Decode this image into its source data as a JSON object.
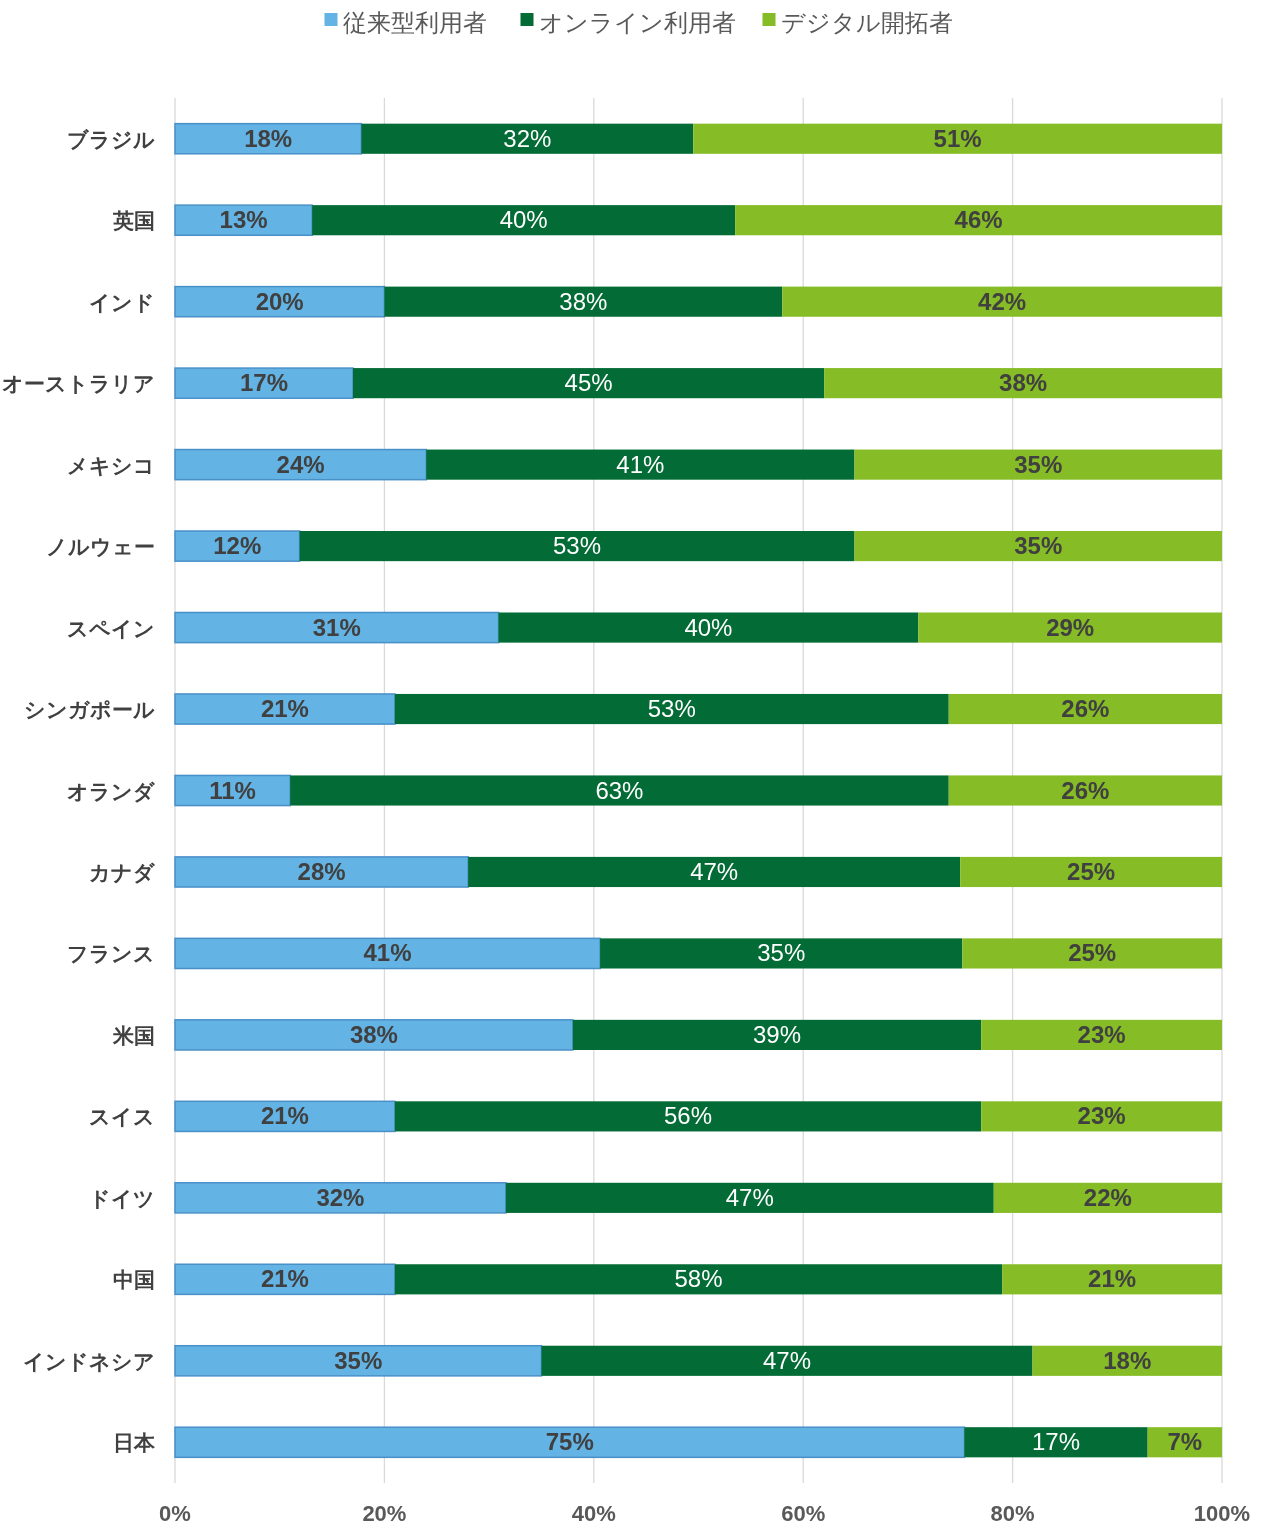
{
  "chart_data": {
    "type": "bar",
    "orientation": "horizontal",
    "stacked": true,
    "legend": "top",
    "grid": "x",
    "categories": [
      "ブラジル",
      "英国",
      "インド",
      "オーストラリア",
      "メキシコ",
      "ノルウェー",
      "スペイン",
      "シンガポール",
      "オランダ",
      "カナダ",
      "フランス",
      "米国",
      "スイス",
      "ドイツ",
      "中国",
      "インドネシア",
      "日本"
    ],
    "xlim": [
      0,
      100
    ],
    "xticks": [
      {
        "value": 0,
        "label": "0%"
      },
      {
        "value": 20,
        "label": "20%"
      },
      {
        "value": 40,
        "label": "40%"
      },
      {
        "value": 60,
        "label": "60%"
      },
      {
        "value": 80,
        "label": "80%"
      },
      {
        "value": 100,
        "label": "100%"
      }
    ],
    "series": [
      {
        "name": "従来型利用者",
        "color": "#63b3e4",
        "values": [
          17.8,
          13.1,
          20.0,
          17.0,
          24.0,
          11.9,
          30.9,
          21.0,
          11.0,
          28.0,
          40.6,
          38.0,
          21.0,
          31.6,
          21.0,
          35.0,
          75.4
        ],
        "value_labels": [
          "18%",
          "13%",
          "20%",
          "17%",
          "24%",
          "12%",
          "31%",
          "21%",
          "11%",
          "28%",
          "41%",
          "38%",
          "21%",
          "32%",
          "21%",
          "35%",
          "75%"
        ]
      },
      {
        "name": "オンライン利用者",
        "color": "#036b35",
        "values": [
          31.7,
          40.4,
          38.0,
          45.0,
          40.9,
          53.0,
          40.1,
          52.9,
          62.9,
          47.0,
          34.6,
          39.0,
          56.0,
          46.6,
          58.0,
          46.9,
          17.5
        ],
        "value_labels": [
          "32%",
          "40%",
          "38%",
          "45%",
          "41%",
          "53%",
          "40%",
          "53%",
          "63%",
          "47%",
          "35%",
          "39%",
          "56%",
          "47%",
          "58%",
          "47%",
          "17%"
        ]
      },
      {
        "name": "デジタル開拓者",
        "color": "#86bc25",
        "values": [
          50.5,
          46.5,
          42.0,
          38.0,
          35.1,
          35.1,
          29.0,
          26.1,
          26.1,
          25.0,
          24.8,
          23.0,
          23.0,
          21.8,
          21.0,
          18.1,
          7.1
        ],
        "value_labels": [
          "51%",
          "46%",
          "42%",
          "38%",
          "35%",
          "35%",
          "29%",
          "26%",
          "26%",
          "25%",
          "25%",
          "23%",
          "23%",
          "22%",
          "21%",
          "18%",
          "7%"
        ]
      }
    ]
  }
}
